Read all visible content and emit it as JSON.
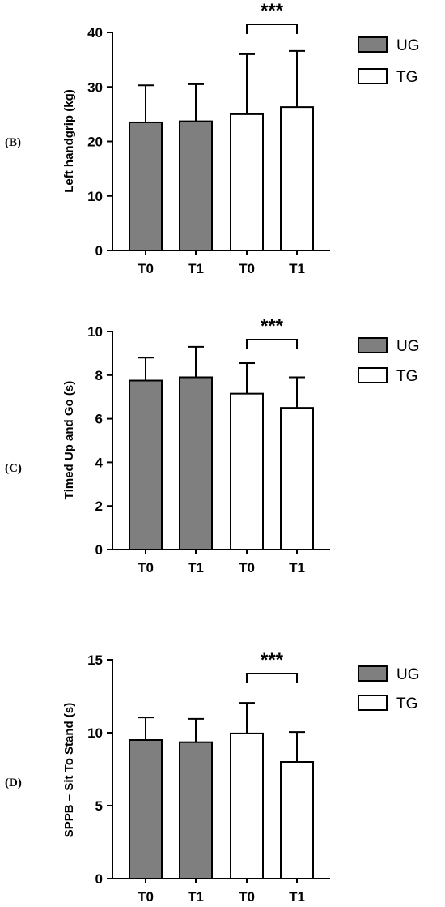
{
  "legend": {
    "ug_label": "UG",
    "tg_label": "TG"
  },
  "colors": {
    "ug_fill": "#7f7f7f",
    "tg_fill": "#ffffff",
    "stroke": "#000000"
  },
  "chart_data": [
    {
      "panel_label": "(B)",
      "type": "bar",
      "ylabel": "Left handgrip (kg)",
      "ylim": [
        0,
        40
      ],
      "yticks": [
        0,
        10,
        20,
        30,
        40
      ],
      "categories": [
        "T0",
        "T1",
        "T0",
        "T1"
      ],
      "groups": [
        "UG",
        "UG",
        "TG",
        "TG"
      ],
      "values": [
        23.5,
        23.7,
        25.0,
        26.3
      ],
      "error_upper": [
        30.3,
        30.5,
        36.0,
        36.6
      ],
      "significance": {
        "from": 2,
        "to": 3,
        "label": "***"
      },
      "grid": false,
      "legend_position": "right"
    },
    {
      "panel_label": "(C)",
      "type": "bar",
      "ylabel": "Timed Up and Go (s)",
      "ylim": [
        0,
        10
      ],
      "yticks": [
        0,
        2,
        4,
        6,
        8,
        10
      ],
      "categories": [
        "T0",
        "T1",
        "T0",
        "T1"
      ],
      "groups": [
        "UG",
        "UG",
        "TG",
        "TG"
      ],
      "values": [
        7.75,
        7.9,
        7.15,
        6.5
      ],
      "error_upper": [
        8.8,
        9.3,
        8.55,
        7.9
      ],
      "significance": {
        "from": 2,
        "to": 3,
        "label": "***"
      },
      "grid": false,
      "legend_position": "right"
    },
    {
      "panel_label": "(D)",
      "type": "bar",
      "ylabel": "SPPB – Sit To Stand (s)",
      "ylim": [
        0,
        15
      ],
      "yticks": [
        0,
        5,
        10,
        15
      ],
      "categories": [
        "T0",
        "T1",
        "T0",
        "T1"
      ],
      "groups": [
        "UG",
        "UG",
        "TG",
        "TG"
      ],
      "values": [
        9.5,
        9.35,
        9.95,
        8.0
      ],
      "error_upper": [
        11.05,
        10.95,
        12.05,
        10.05
      ],
      "significance": {
        "from": 2,
        "to": 3,
        "label": "***"
      },
      "grid": false,
      "legend_position": "right"
    }
  ]
}
